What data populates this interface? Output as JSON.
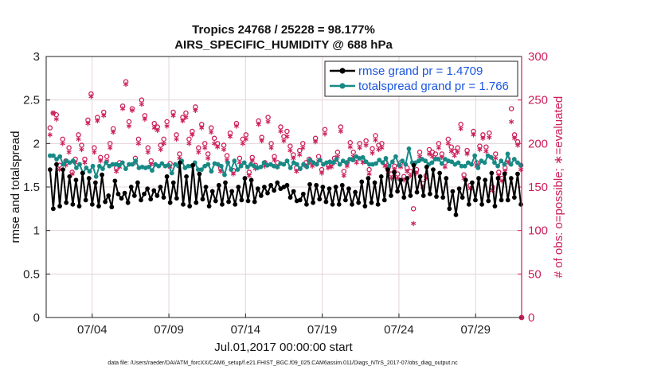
{
  "chart_data": {
    "type": "line",
    "title_line1": "Tropics 24768 / 25228 = 98.177%",
    "title_line2": "AIRS_SPECIFIC_HUMIDITY @ 688 hPa",
    "xlabel": "Jul.01,2017 00:00:00 start",
    "ylabel_left": "rmse and totalspread",
    "ylabel_right": "# of obs: o=possible; ∗=evaluated",
    "ylim_left": [
      0,
      3
    ],
    "ylim_right": [
      0,
      300
    ],
    "xlim": [
      1,
      32
    ],
    "yticks_left": [
      "0",
      "0.5",
      "1",
      "1.5",
      "2",
      "2.5",
      "3"
    ],
    "yticks_right": [
      "0",
      "50",
      "100",
      "150",
      "200",
      "250",
      "300"
    ],
    "xticks": [
      {
        "label": "07/04",
        "day": 4
      },
      {
        "label": "07/09",
        "day": 9
      },
      {
        "label": "07/14",
        "day": 14
      },
      {
        "label": "07/19",
        "day": 19
      },
      {
        "label": "07/24",
        "day": 24
      },
      {
        "label": "07/29",
        "day": 29
      }
    ],
    "legend": [
      {
        "name": "rmse grand pr = 1.4709",
        "color": "#000000"
      },
      {
        "name": "totalspread grand pr = 1.766",
        "color": "#178a86"
      }
    ],
    "series": [
      {
        "name": "rmse",
        "color": "#000000",
        "axis": "left",
        "values": [
          1.7,
          1.25,
          1.76,
          1.28,
          1.7,
          1.32,
          1.62,
          1.3,
          1.58,
          1.28,
          1.66,
          1.35,
          1.6,
          1.3,
          1.55,
          1.28,
          1.64,
          1.33,
          1.4,
          1.27,
          1.57,
          1.42,
          1.37,
          1.43,
          1.32,
          1.5,
          1.4,
          1.55,
          1.35,
          1.42,
          1.48,
          1.36,
          1.46,
          1.4,
          1.5,
          1.38,
          1.62,
          1.32,
          1.55,
          1.37,
          1.78,
          1.3,
          1.62,
          1.28,
          1.75,
          1.32,
          1.65,
          1.36,
          1.5,
          1.28,
          1.45,
          1.34,
          1.52,
          1.3,
          1.55,
          1.33,
          1.45,
          1.3,
          1.5,
          1.35,
          1.6,
          1.34,
          1.58,
          1.33,
          1.48,
          1.4,
          1.5,
          1.43,
          1.52,
          1.46,
          1.55,
          1.48,
          1.5,
          1.52,
          1.38,
          1.45,
          1.34,
          1.35,
          1.42,
          1.3,
          1.53,
          1.32,
          1.52,
          1.36,
          1.5,
          1.33,
          1.48,
          1.3,
          1.5,
          1.3,
          1.52,
          1.35,
          1.48,
          1.3,
          1.44,
          1.32,
          1.56,
          1.28,
          1.6,
          1.32,
          1.55,
          1.3,
          1.62,
          1.35,
          1.7,
          1.4,
          1.67,
          1.45,
          1.58,
          1.38,
          1.6,
          1.4,
          1.75,
          1.44,
          1.62,
          1.4,
          1.73,
          1.42,
          1.7,
          1.39,
          1.66,
          1.38,
          1.6,
          1.25,
          1.45,
          1.18,
          1.48,
          1.38,
          1.58,
          1.3,
          1.55,
          1.35,
          1.6,
          1.3,
          1.58,
          1.34,
          1.66,
          1.28,
          1.6,
          1.35,
          1.65,
          1.35,
          1.6,
          1.38,
          1.65,
          1.3
        ]
      },
      {
        "name": "totalspread",
        "color": "#178a86",
        "axis": "left",
        "values": [
          1.86,
          1.86,
          1.82,
          1.85,
          1.76,
          1.8,
          1.78,
          1.8,
          1.72,
          1.76,
          1.66,
          1.72,
          1.68,
          1.74,
          1.62,
          1.74,
          1.71,
          1.78,
          1.74,
          1.76,
          1.76,
          1.75,
          1.78,
          1.71,
          1.76,
          1.76,
          1.8,
          1.72,
          1.73,
          1.72,
          1.73,
          1.69,
          1.76,
          1.74,
          1.77,
          1.74,
          1.75,
          1.66,
          1.76,
          1.74,
          1.8,
          1.72,
          1.74,
          1.74,
          1.78,
          1.7,
          1.7,
          1.74,
          1.76,
          1.68,
          1.77,
          1.76,
          1.74,
          1.64,
          1.78,
          1.7,
          1.8,
          1.7,
          1.74,
          1.78,
          1.73,
          1.76,
          1.74,
          1.72,
          1.73,
          1.78,
          1.75,
          1.76,
          1.74,
          1.73,
          1.77,
          1.76,
          1.8,
          1.72,
          1.78,
          1.76,
          1.71,
          1.76,
          1.73,
          1.81,
          1.78,
          1.76,
          1.81,
          1.76,
          1.78,
          1.79,
          1.78,
          1.82,
          1.76,
          1.8,
          1.78,
          1.82,
          1.81,
          1.85,
          1.83,
          1.84,
          1.79,
          1.76,
          1.76,
          1.77,
          1.81,
          1.78,
          1.83,
          1.74,
          1.79,
          1.85,
          1.75,
          1.8,
          1.76,
          1.94,
          1.78,
          1.78,
          1.8,
          1.82,
          1.8,
          1.76,
          1.78,
          1.82,
          1.82,
          1.77,
          1.82,
          1.8,
          1.79,
          1.76,
          1.78,
          1.74,
          1.74,
          1.78,
          1.76,
          1.86,
          1.72,
          1.8,
          1.78,
          1.86,
          1.84,
          1.78,
          1.74,
          1.8,
          1.76,
          1.88,
          1.76,
          1.82,
          1.78,
          1.75
        ]
      },
      {
        "name": "possible",
        "color": "#cc1f5a",
        "axis": "right",
        "values": [
          218,
          235,
          233,
          175,
          205,
          180,
          195,
          167,
          182,
          210,
          198,
          182,
          227,
          257,
          195,
          230,
          184,
          236,
          185,
          200,
          217,
          172,
          178,
          243,
          271,
          225,
          240,
          183,
          205,
          250,
          232,
          195,
          180,
          223,
          219,
          198,
          205,
          225,
          177,
          236,
          210,
          188,
          230,
          235,
          205,
          214,
          242,
          195,
          222,
          200,
          188,
          218,
          206,
          200,
          172,
          198,
          186,
          212,
          169,
          223,
          183,
          205,
          210,
          167,
          184,
          175,
          226,
          207,
          178,
          230,
          200,
          185,
          178,
          219,
          208,
          214,
          197,
          187,
          172,
          192,
          200,
          178,
          182,
          178,
          206,
          185,
          170,
          216,
          176,
          177,
          183,
          190,
          219,
          168,
          178,
          201,
          190,
          183,
          200,
          182,
          203,
          170,
          194,
          209,
          198,
          200,
          178,
          172,
          165,
          174,
          165,
          178,
          162,
          172,
          168,
          125,
          170,
          190,
          154,
          163,
          193,
          190,
          188,
          200,
          188,
          178,
          205,
          196,
          191,
          195,
          222,
          164,
          192,
          152,
          214,
          178,
          197,
          210,
          196,
          212,
          150,
          188,
          167,
          160,
          172,
          182,
          240,
          210,
          202,
          175
        ]
      },
      {
        "name": "evaluated",
        "color": "#cc1f5a",
        "axis": "right",
        "values": [
          210,
          235,
          228,
          170,
          200,
          175,
          190,
          165,
          178,
          205,
          193,
          178,
          223,
          254,
          190,
          226,
          180,
          232,
          180,
          195,
          213,
          168,
          173,
          240,
          268,
          220,
          238,
          178,
          200,
          245,
          228,
          190,
          176,
          218,
          215,
          193,
          200,
          220,
          173,
          232,
          205,
          183,
          226,
          230,
          200,
          210,
          238,
          190,
          218,
          195,
          183,
          213,
          200,
          196,
          168,
          193,
          181,
          208,
          165,
          220,
          178,
          200,
          205,
          163,
          180,
          171,
          222,
          203,
          174,
          225,
          195,
          181,
          173,
          214,
          203,
          208,
          192,
          183,
          168,
          187,
          195,
          174,
          178,
          174,
          202,
          180,
          166,
          211,
          172,
          173,
          178,
          185,
          214,
          163,
          174,
          196,
          185,
          178,
          195,
          178,
          198,
          165,
          189,
          204,
          193,
          195,
          174,
          167,
          160,
          170,
          160,
          173,
          158,
          168,
          163,
          108,
          166,
          185,
          150,
          160,
          188,
          185,
          183,
          195,
          184,
          173,
          200,
          191,
          186,
          190,
          217,
          160,
          188,
          148,
          210,
          174,
          193,
          206,
          191,
          207,
          146,
          183,
          163,
          157,
          168,
          178,
          225,
          206,
          198,
          170
        ]
      }
    ],
    "footnote": "data file: /Users/raeder/DAI/ATM_forcXX/CAM6_setup/f.e21.FHIST_BGC.f09_025.CAM6assim.011/Diags_NTrS_2017-07/obs_diag_output.nc",
    "grid": true,
    "legend_position": "top-right"
  }
}
